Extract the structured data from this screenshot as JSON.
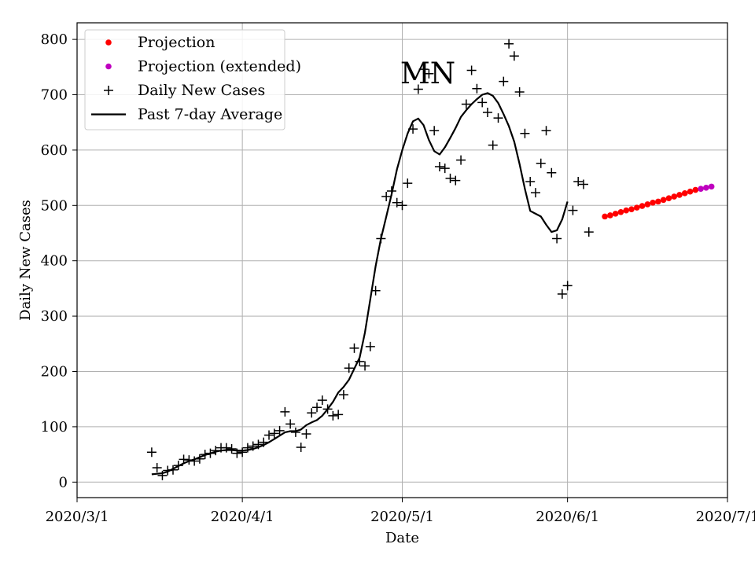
{
  "chart_data": {
    "type": "line",
    "title": "",
    "xlabel": "Date",
    "ylabel": "Daily New Cases",
    "annotation": "MN",
    "grid": true,
    "legend_position": "top-left",
    "x_type": "date",
    "xlim": [
      "2020-03-01",
      "2020-07-01"
    ],
    "ylim": [
      -28,
      830
    ],
    "x_ticks": [
      {
        "date": "2020-03-01",
        "label": "2020/3/1"
      },
      {
        "date": "2020-04-01",
        "label": "2020/4/1"
      },
      {
        "date": "2020-05-01",
        "label": "2020/5/1"
      },
      {
        "date": "2020-06-01",
        "label": "2020/6/1"
      },
      {
        "date": "2020-07-01",
        "label": "2020/7/1"
      }
    ],
    "y_ticks": [
      0,
      100,
      200,
      300,
      400,
      500,
      600,
      700,
      800
    ],
    "colors": {
      "projection": "#ff0000",
      "projection_extended": "#bf00bf",
      "daily": "#000000",
      "average": "#000000"
    },
    "series": [
      {
        "name": "Projection",
        "marker": "dot",
        "points": [
          [
            "2020-06-08",
            480
          ],
          [
            "2020-06-09",
            482
          ],
          [
            "2020-06-10",
            485
          ],
          [
            "2020-06-11",
            488
          ],
          [
            "2020-06-12",
            491
          ],
          [
            "2020-06-13",
            493
          ],
          [
            "2020-06-14",
            496
          ],
          [
            "2020-06-15",
            499
          ],
          [
            "2020-06-16",
            502
          ],
          [
            "2020-06-17",
            505
          ],
          [
            "2020-06-18",
            507
          ],
          [
            "2020-06-19",
            510
          ],
          [
            "2020-06-20",
            513
          ],
          [
            "2020-06-21",
            516
          ],
          [
            "2020-06-22",
            519
          ],
          [
            "2020-06-23",
            522
          ],
          [
            "2020-06-24",
            525
          ],
          [
            "2020-06-25",
            528
          ]
        ]
      },
      {
        "name": "Projection (extended)",
        "marker": "dot",
        "points": [
          [
            "2020-06-26",
            530
          ],
          [
            "2020-06-27",
            532
          ],
          [
            "2020-06-28",
            534
          ]
        ]
      },
      {
        "name": "Daily New Cases",
        "marker": "plus",
        "points": [
          [
            "2020-03-15",
            54
          ],
          [
            "2020-03-16",
            26
          ],
          [
            "2020-03-17",
            12
          ],
          [
            "2020-03-18",
            21
          ],
          [
            "2020-03-19",
            22
          ],
          [
            "2020-03-20",
            30
          ],
          [
            "2020-03-21",
            41
          ],
          [
            "2020-03-22",
            40
          ],
          [
            "2020-03-23",
            38
          ],
          [
            "2020-03-24",
            42
          ],
          [
            "2020-03-25",
            50
          ],
          [
            "2020-03-26",
            52
          ],
          [
            "2020-03-27",
            57
          ],
          [
            "2020-03-28",
            62
          ],
          [
            "2020-03-29",
            62
          ],
          [
            "2020-03-30",
            60
          ],
          [
            "2020-03-31",
            52
          ],
          [
            "2020-04-01",
            54
          ],
          [
            "2020-04-02",
            62
          ],
          [
            "2020-04-03",
            65
          ],
          [
            "2020-04-04",
            68
          ],
          [
            "2020-04-05",
            72
          ],
          [
            "2020-04-06",
            85
          ],
          [
            "2020-04-07",
            88
          ],
          [
            "2020-04-08",
            93
          ],
          [
            "2020-04-09",
            127
          ],
          [
            "2020-04-10",
            105
          ],
          [
            "2020-04-11",
            90
          ],
          [
            "2020-04-12",
            63
          ],
          [
            "2020-04-13",
            87
          ],
          [
            "2020-04-14",
            125
          ],
          [
            "2020-04-15",
            135
          ],
          [
            "2020-04-16",
            148
          ],
          [
            "2020-04-17",
            132
          ],
          [
            "2020-04-18",
            120
          ],
          [
            "2020-04-19",
            122
          ],
          [
            "2020-04-20",
            158
          ],
          [
            "2020-04-21",
            206
          ],
          [
            "2020-04-22",
            242
          ],
          [
            "2020-04-23",
            218
          ],
          [
            "2020-04-24",
            210
          ],
          [
            "2020-04-25",
            245
          ],
          [
            "2020-04-26",
            346
          ],
          [
            "2020-04-27",
            440
          ],
          [
            "2020-04-28",
            516
          ],
          [
            "2020-04-29",
            526
          ],
          [
            "2020-04-30",
            505
          ],
          [
            "2020-05-01",
            500
          ],
          [
            "2020-05-02",
            540
          ],
          [
            "2020-05-03",
            638
          ],
          [
            "2020-05-04",
            710
          ],
          [
            "2020-05-05",
            746
          ],
          [
            "2020-05-06",
            738
          ],
          [
            "2020-05-07",
            635
          ],
          [
            "2020-05-08",
            570
          ],
          [
            "2020-05-09",
            567
          ],
          [
            "2020-05-10",
            549
          ],
          [
            "2020-05-11",
            545
          ],
          [
            "2020-05-12",
            582
          ],
          [
            "2020-05-13",
            683
          ],
          [
            "2020-05-14",
            744
          ],
          [
            "2020-05-15",
            711
          ],
          [
            "2020-05-16",
            686
          ],
          [
            "2020-05-17",
            668
          ],
          [
            "2020-05-18",
            609
          ],
          [
            "2020-05-19",
            658
          ],
          [
            "2020-05-20",
            724
          ],
          [
            "2020-05-21",
            792
          ],
          [
            "2020-05-22",
            770
          ],
          [
            "2020-05-23",
            705
          ],
          [
            "2020-05-24",
            630
          ],
          [
            "2020-05-25",
            543
          ],
          [
            "2020-05-26",
            523
          ],
          [
            "2020-05-27",
            576
          ],
          [
            "2020-05-28",
            635
          ],
          [
            "2020-05-29",
            559
          ],
          [
            "2020-05-30",
            440
          ],
          [
            "2020-05-31",
            340
          ],
          [
            "2020-06-01",
            355
          ],
          [
            "2020-06-02",
            491
          ],
          [
            "2020-06-03",
            543
          ],
          [
            "2020-06-04",
            538
          ],
          [
            "2020-06-05",
            452
          ]
        ]
      },
      {
        "name": "Past 7-day Average",
        "marker": "line",
        "points": [
          [
            "2020-03-15",
            14
          ],
          [
            "2020-03-16",
            15
          ],
          [
            "2020-03-17",
            16
          ],
          [
            "2020-03-18",
            19
          ],
          [
            "2020-03-19",
            24
          ],
          [
            "2020-03-20",
            29
          ],
          [
            "2020-03-21",
            34
          ],
          [
            "2020-03-22",
            38
          ],
          [
            "2020-03-23",
            41
          ],
          [
            "2020-03-24",
            45
          ],
          [
            "2020-03-25",
            49
          ],
          [
            "2020-03-26",
            52
          ],
          [
            "2020-03-27",
            55
          ],
          [
            "2020-03-28",
            57
          ],
          [
            "2020-03-29",
            58
          ],
          [
            "2020-03-30",
            58
          ],
          [
            "2020-03-31",
            57
          ],
          [
            "2020-04-01",
            57
          ],
          [
            "2020-04-02",
            58
          ],
          [
            "2020-04-03",
            60
          ],
          [
            "2020-04-04",
            63
          ],
          [
            "2020-04-05",
            67
          ],
          [
            "2020-04-06",
            72
          ],
          [
            "2020-04-07",
            78
          ],
          [
            "2020-04-08",
            84
          ],
          [
            "2020-04-09",
            90
          ],
          [
            "2020-04-10",
            92
          ],
          [
            "2020-04-11",
            92
          ],
          [
            "2020-04-12",
            95
          ],
          [
            "2020-04-13",
            103
          ],
          [
            "2020-04-14",
            108
          ],
          [
            "2020-04-15",
            112
          ],
          [
            "2020-04-16",
            120
          ],
          [
            "2020-04-17",
            132
          ],
          [
            "2020-04-18",
            145
          ],
          [
            "2020-04-19",
            162
          ],
          [
            "2020-04-20",
            172
          ],
          [
            "2020-04-21",
            185
          ],
          [
            "2020-04-22",
            205
          ],
          [
            "2020-04-23",
            225
          ],
          [
            "2020-04-24",
            270
          ],
          [
            "2020-04-25",
            330
          ],
          [
            "2020-04-26",
            390
          ],
          [
            "2020-04-27",
            440
          ],
          [
            "2020-04-28",
            480
          ],
          [
            "2020-04-29",
            520
          ],
          [
            "2020-04-30",
            565
          ],
          [
            "2020-05-01",
            600
          ],
          [
            "2020-05-02",
            630
          ],
          [
            "2020-05-03",
            652
          ],
          [
            "2020-05-04",
            657
          ],
          [
            "2020-05-05",
            645
          ],
          [
            "2020-05-06",
            618
          ],
          [
            "2020-05-07",
            598
          ],
          [
            "2020-05-08",
            592
          ],
          [
            "2020-05-09",
            605
          ],
          [
            "2020-05-10",
            622
          ],
          [
            "2020-05-11",
            640
          ],
          [
            "2020-05-12",
            660
          ],
          [
            "2020-05-13",
            672
          ],
          [
            "2020-05-14",
            683
          ],
          [
            "2020-05-15",
            692
          ],
          [
            "2020-05-16",
            700
          ],
          [
            "2020-05-17",
            703
          ],
          [
            "2020-05-18",
            698
          ],
          [
            "2020-05-19",
            685
          ],
          [
            "2020-05-20",
            665
          ],
          [
            "2020-05-21",
            643
          ],
          [
            "2020-05-22",
            615
          ],
          [
            "2020-05-23",
            575
          ],
          [
            "2020-05-24",
            530
          ],
          [
            "2020-05-25",
            490
          ],
          [
            "2020-05-26",
            485
          ],
          [
            "2020-05-27",
            480
          ],
          [
            "2020-05-28",
            465
          ],
          [
            "2020-05-29",
            452
          ],
          [
            "2020-05-30",
            455
          ],
          [
            "2020-05-31",
            475
          ],
          [
            "2020-06-01",
            507
          ]
        ]
      }
    ]
  }
}
